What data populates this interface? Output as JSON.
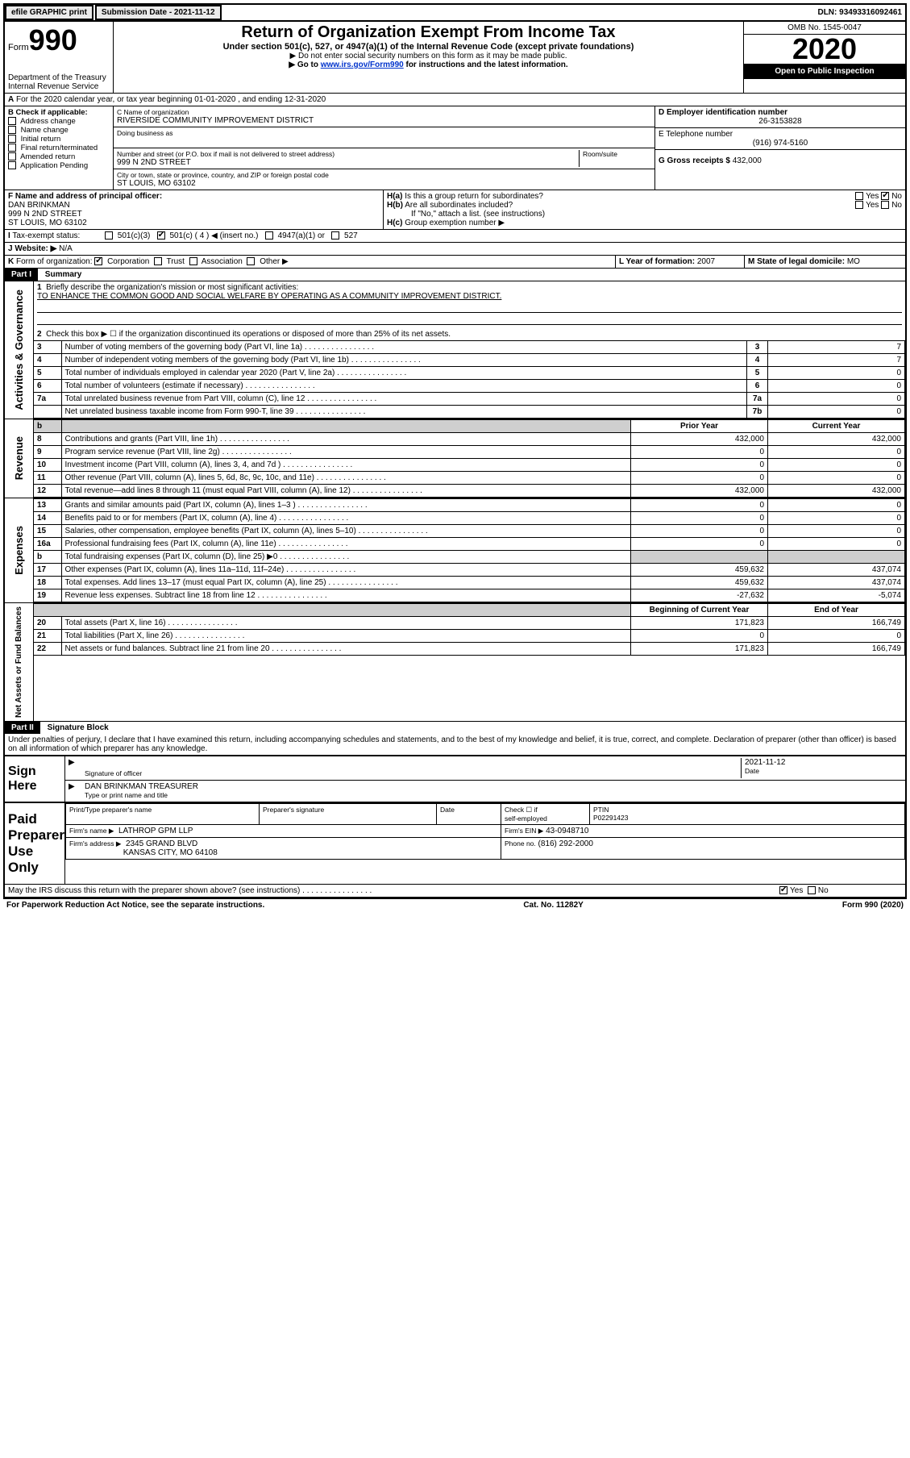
{
  "topbar": {
    "efile": "efile GRAPHIC print",
    "submission_label": "Submission Date - 2021-11-12",
    "dln": "DLN: 93493316092461"
  },
  "header": {
    "form_label": "Form",
    "form_no": "990",
    "dept": "Department of the Treasury\nInternal Revenue Service",
    "title": "Return of Organization Exempt From Income Tax",
    "subtitle": "Under section 501(c), 527, or 4947(a)(1) of the Internal Revenue Code (except private foundations)",
    "note1": "Do not enter social security numbers on this form as it may be made public.",
    "note2_pre": "Go to ",
    "note2_link": "www.irs.gov/Form990",
    "note2_post": " for instructions and the latest information.",
    "omb": "OMB No. 1545-0047",
    "year": "2020",
    "open": "Open to Public Inspection"
  },
  "lineA": "For the 2020 calendar year, or tax year beginning 01-01-2020   , and ending 12-31-2020",
  "colB": {
    "title": "B Check if applicable:",
    "items": [
      "Address change",
      "Name change",
      "Initial return",
      "Final return/terminated",
      "Amended return",
      "Application Pending"
    ]
  },
  "colC": {
    "name_label": "C Name of organization",
    "name": "RIVERSIDE COMMUNITY IMPROVEMENT DISTRICT",
    "dba_label": "Doing business as",
    "addr_label": "Number and street (or P.O. box if mail is not delivered to street address)",
    "room_label": "Room/suite",
    "addr": "999 N 2ND STREET",
    "city_label": "City or town, state or province, country, and ZIP or foreign postal code",
    "city": "ST LOUIS, MO  63102"
  },
  "colD": {
    "ein_label": "D Employer identification number",
    "ein": "26-3153828",
    "phone_label": "E Telephone number",
    "phone": "(916) 974-5160",
    "gross_label": "G Gross receipts $ ",
    "gross": "432,000"
  },
  "blockF": {
    "label": "F Name and address of principal officer:",
    "name": "DAN BRINKMAN",
    "addr1": "999 N 2ND STREET",
    "addr2": "ST LOUIS, MO  63102"
  },
  "blockH": {
    "a": "Is this a group return for subordinates?",
    "b": "Are all subordinates included?",
    "b_note": "If \"No,\" attach a list. (see instructions)",
    "c": "Group exemption number ▶"
  },
  "taxexempt": {
    "label": "Tax-exempt status:",
    "opts": [
      "501(c)(3)",
      "501(c) ( 4 ) ◀ (insert no.)",
      "4947(a)(1) or",
      "527"
    ]
  },
  "website": {
    "label": "Website: ▶",
    "value": "N/A"
  },
  "lineK": "Form of organization:",
  "lineK_opts": [
    "Corporation",
    "Trust",
    "Association",
    "Other ▶"
  ],
  "lineL": {
    "label": "L Year of formation:",
    "val": "2007"
  },
  "lineM": {
    "label": "M State of legal domicile:",
    "val": "MO"
  },
  "part1": {
    "bar": "Part I",
    "title": "Summary",
    "q1": "Briefly describe the organization's mission or most significant activities:",
    "q1_ans": "TO ENHANCE THE COMMON GOOD AND SOCIAL WELFARE BY OPERATING AS A COMMUNITY IMPROVEMENT DISTRICT.",
    "q2": "Check this box ▶ ☐  if the organization discontinued its operations or disposed of more than 25% of its net assets.",
    "rows_act": [
      {
        "n": "3",
        "t": "Number of voting members of the governing body (Part VI, line 1a)",
        "k": "3",
        "v": "7"
      },
      {
        "n": "4",
        "t": "Number of independent voting members of the governing body (Part VI, line 1b)",
        "k": "4",
        "v": "7"
      },
      {
        "n": "5",
        "t": "Total number of individuals employed in calendar year 2020 (Part V, line 2a)",
        "k": "5",
        "v": "0"
      },
      {
        "n": "6",
        "t": "Total number of volunteers (estimate if necessary)",
        "k": "6",
        "v": "0"
      },
      {
        "n": "7a",
        "t": "Total unrelated business revenue from Part VIII, column (C), line 12",
        "k": "7a",
        "v": "0"
      },
      {
        "n": "",
        "t": "Net unrelated business taxable income from Form 990-T, line 39",
        "k": "7b",
        "v": "0"
      }
    ],
    "hdr_prior": "Prior Year",
    "hdr_curr": "Current Year",
    "rows_rev": [
      {
        "n": "8",
        "t": "Contributions and grants (Part VIII, line 1h)",
        "p": "432,000",
        "c": "432,000"
      },
      {
        "n": "9",
        "t": "Program service revenue (Part VIII, line 2g)",
        "p": "0",
        "c": "0"
      },
      {
        "n": "10",
        "t": "Investment income (Part VIII, column (A), lines 3, 4, and 7d )",
        "p": "0",
        "c": "0"
      },
      {
        "n": "11",
        "t": "Other revenue (Part VIII, column (A), lines 5, 6d, 8c, 9c, 10c, and 11e)",
        "p": "0",
        "c": "0"
      },
      {
        "n": "12",
        "t": "Total revenue—add lines 8 through 11 (must equal Part VIII, column (A), line 12)",
        "p": "432,000",
        "c": "432,000"
      }
    ],
    "rows_exp": [
      {
        "n": "13",
        "t": "Grants and similar amounts paid (Part IX, column (A), lines 1–3 )",
        "p": "0",
        "c": "0"
      },
      {
        "n": "14",
        "t": "Benefits paid to or for members (Part IX, column (A), line 4)",
        "p": "0",
        "c": "0"
      },
      {
        "n": "15",
        "t": "Salaries, other compensation, employee benefits (Part IX, column (A), lines 5–10)",
        "p": "0",
        "c": "0"
      },
      {
        "n": "16a",
        "t": "Professional fundraising fees (Part IX, column (A), line 11e)",
        "p": "0",
        "c": "0"
      },
      {
        "n": "b",
        "t": "Total fundraising expenses (Part IX, column (D), line 25) ▶0",
        "p": "",
        "c": "",
        "shade": true
      },
      {
        "n": "17",
        "t": "Other expenses (Part IX, column (A), lines 11a–11d, 11f–24e)",
        "p": "459,632",
        "c": "437,074"
      },
      {
        "n": "18",
        "t": "Total expenses. Add lines 13–17 (must equal Part IX, column (A), line 25)",
        "p": "459,632",
        "c": "437,074"
      },
      {
        "n": "19",
        "t": "Revenue less expenses. Subtract line 18 from line 12",
        "p": "-27,632",
        "c": "-5,074"
      }
    ],
    "hdr_beg": "Beginning of Current Year",
    "hdr_end": "End of Year",
    "rows_net": [
      {
        "n": "20",
        "t": "Total assets (Part X, line 16)",
        "p": "171,823",
        "c": "166,749"
      },
      {
        "n": "21",
        "t": "Total liabilities (Part X, line 26)",
        "p": "0",
        "c": "0"
      },
      {
        "n": "22",
        "t": "Net assets or fund balances. Subtract line 21 from line 20",
        "p": "171,823",
        "c": "166,749"
      }
    ]
  },
  "part2": {
    "bar": "Part II",
    "title": "Signature Block",
    "decl": "Under penalties of perjury, I declare that I have examined this return, including accompanying schedules and statements, and to the best of my knowledge and belief, it is true, correct, and complete. Declaration of preparer (other than officer) is based on all information of which preparer has any knowledge."
  },
  "sign": {
    "side": "Sign Here",
    "sig_label": "Signature of officer",
    "date_label": "Date",
    "date": "2021-11-12",
    "name": "DAN BRINKMAN  TREASURER",
    "name_label": "Type or print name and title"
  },
  "paid": {
    "side": "Paid Preparer Use Only",
    "h1": "Print/Type preparer's name",
    "h2": "Preparer's signature",
    "h3": "Date",
    "h4a": "Check ☐ if",
    "h4b": "self-employed",
    "h5": "PTIN",
    "ptin": "P02291423",
    "firm_label": "Firm's name    ▶",
    "firm": "LATHROP GPM LLP",
    "ein_label": "Firm's EIN ▶",
    "ein": "43-0948710",
    "addr_label": "Firm's address ▶",
    "addr1": "2345 GRAND BLVD",
    "addr2": "KANSAS CITY, MO  64108",
    "phone_label": "Phone no.",
    "phone": "(816) 292-2000"
  },
  "discuss": "May the IRS discuss this return with the preparer shown above? (see instructions)",
  "footer": {
    "left": "For Paperwork Reduction Act Notice, see the separate instructions.",
    "mid": "Cat. No. 11282Y",
    "right": "Form 990 (2020)"
  },
  "yesno": {
    "yes": "Yes",
    "no": "No"
  },
  "sidelabels": {
    "act": "Activities & Governance",
    "rev": "Revenue",
    "exp": "Expenses",
    "net": "Net Assets or Fund Balances"
  }
}
